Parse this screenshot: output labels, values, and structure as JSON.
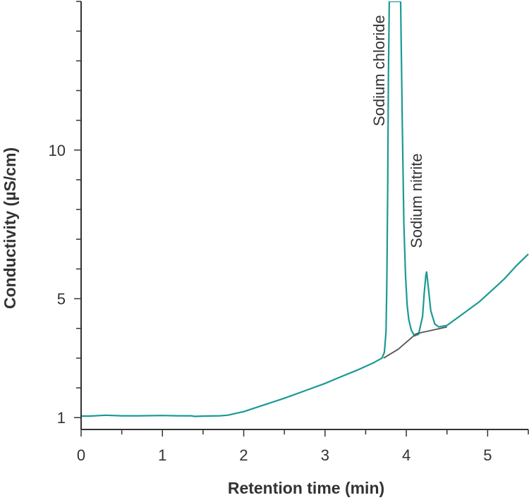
{
  "chart_data": {
    "type": "line",
    "xlabel": "Retention time (min)",
    "ylabel": "Conductivity (µS/cm)",
    "xlim": [
      0,
      5.5
    ],
    "ylim": [
      0.6,
      15
    ],
    "x_ticks": [
      0,
      1,
      2,
      3,
      4,
      5
    ],
    "x_tick_labels": [
      "0",
      "1",
      "2",
      "3",
      "4",
      "5"
    ],
    "y_ticks": [
      1,
      5,
      10
    ],
    "y_tick_labels": [
      "1",
      "5",
      "10"
    ],
    "grid": false,
    "legend": "none",
    "colors": {
      "signal": "#1a9a94",
      "baseline": "#555555",
      "axis": "#333333"
    },
    "series": [
      {
        "role": "signal",
        "x": [
          0.0,
          0.1,
          0.3,
          0.5,
          0.7,
          1.0,
          1.2,
          1.35,
          1.4,
          1.5,
          1.7,
          1.8,
          2.0,
          2.2,
          2.5,
          2.8,
          3.0,
          3.2,
          3.4,
          3.6,
          3.7,
          3.73,
          3.75,
          3.76,
          3.77,
          3.78,
          3.79,
          3.8,
          3.93,
          3.95,
          3.97,
          3.99,
          4.01,
          4.03,
          4.06,
          4.1,
          4.15,
          4.2,
          4.22,
          4.24,
          4.25,
          4.27,
          4.3,
          4.35,
          4.4,
          4.5,
          4.7,
          4.9,
          5.1,
          5.2,
          5.35,
          5.5
        ],
        "y": [
          1.05,
          1.05,
          1.08,
          1.06,
          1.06,
          1.07,
          1.06,
          1.06,
          1.04,
          1.05,
          1.06,
          1.08,
          1.2,
          1.38,
          1.65,
          1.95,
          2.15,
          2.38,
          2.6,
          2.85,
          3.0,
          3.2,
          3.9,
          5.5,
          8.5,
          12.5,
          15.0,
          15.0,
          15.0,
          11.0,
          7.5,
          5.8,
          4.8,
          4.3,
          3.95,
          3.75,
          3.8,
          4.4,
          5.2,
          5.8,
          5.9,
          5.4,
          4.6,
          4.15,
          4.05,
          4.1,
          4.5,
          4.9,
          5.4,
          5.65,
          6.1,
          6.5
        ]
      },
      {
        "role": "baseline",
        "x": [
          3.72,
          3.9,
          4.12,
          4.5
        ],
        "y": [
          3.0,
          3.3,
          3.82,
          4.05
        ]
      }
    ],
    "annotations": [
      {
        "text": "Sodium chloride",
        "x": 3.73,
        "y": 10.8
      },
      {
        "text": "Sodium nitrite",
        "x": 4.19,
        "y": 6.7
      }
    ]
  }
}
